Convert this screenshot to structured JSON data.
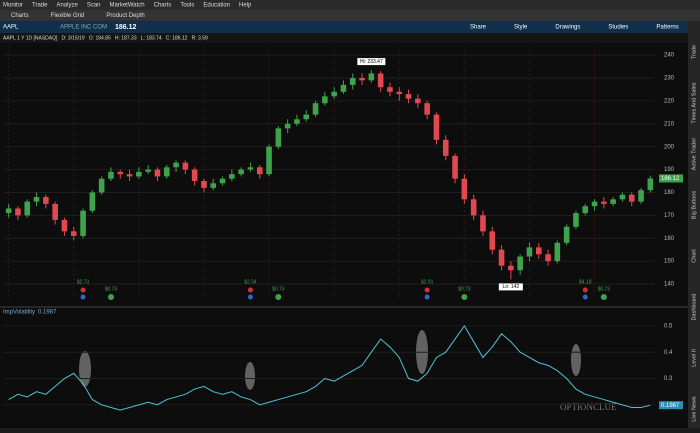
{
  "menu": [
    "Monitor",
    "Trade",
    "Analyze",
    "Scan",
    "MarketWatch",
    "Charts",
    "Tools",
    "Education",
    "Help"
  ],
  "tabs": [
    "Charts",
    "Flexible Grid",
    "Product Depth"
  ],
  "toolbar": {
    "symbol": "AAPL",
    "company": "APPLE INC COM",
    "last": "186.12",
    "buttons": [
      "Share",
      "Style",
      "Drawings",
      "Studies",
      "Patterns"
    ]
  },
  "info": "AAPL 1 Y 1D [NASDAQ]   D: 3/15/19   O: 184.85   H: 187.33   L: 183.74   C: 186.12   R: 3.59",
  "sidebar": [
    "Trade",
    "Times And Sales",
    "Active Trader",
    "Big Buttons",
    "Chart",
    "Dashboard",
    "Level II",
    "Live News"
  ],
  "watermark": "OPTIONCLUE",
  "chart_data": [
    {
      "type": "candlestick",
      "up_color": "#3fa34d",
      "down_color": "#e0494f",
      "open": [
        171,
        173,
        170,
        176,
        178,
        175,
        168,
        163,
        161,
        172,
        180,
        186,
        189,
        188,
        187,
        189,
        190,
        187,
        191,
        193,
        190,
        185,
        182,
        184,
        186,
        188,
        190,
        191,
        188,
        200,
        208,
        210,
        212,
        214,
        219,
        222,
        224,
        227,
        230,
        229,
        232,
        226,
        224,
        223,
        221,
        219,
        214,
        203,
        196,
        186,
        177,
        170,
        163,
        155,
        148,
        146,
        152,
        156,
        153,
        150,
        158,
        165,
        171,
        174,
        176,
        175,
        177,
        179,
        176,
        181
      ],
      "high": [
        175,
        174,
        177,
        180,
        179,
        176,
        169,
        165,
        173,
        181,
        187,
        191,
        190,
        190,
        191,
        192,
        191,
        192,
        194,
        194,
        191,
        186,
        186,
        187,
        190,
        191,
        193,
        192,
        201,
        209,
        212,
        214,
        216,
        220,
        224,
        226,
        229,
        232,
        232,
        233.47,
        233,
        228,
        226,
        225,
        223,
        220,
        215,
        205,
        197,
        188,
        179,
        172,
        165,
        157,
        150,
        153,
        158,
        158,
        155,
        159,
        166,
        172,
        175,
        177,
        178,
        178,
        180,
        180,
        182,
        187.33
      ],
      "low": [
        169,
        168,
        169,
        174,
        173,
        166,
        161,
        159,
        160,
        171,
        179,
        185,
        186,
        185,
        186,
        188,
        185,
        186,
        189,
        188,
        183,
        180,
        181,
        183,
        185,
        187,
        189,
        186,
        187,
        199,
        206,
        209,
        211,
        213,
        218,
        221,
        223,
        225,
        227,
        228,
        224,
        222,
        220,
        219,
        217,
        212,
        201,
        194,
        184,
        175,
        168,
        161,
        153,
        146,
        142,
        144,
        150,
        151,
        148,
        149,
        157,
        164,
        170,
        172,
        173,
        174,
        176,
        174,
        175,
        180
      ],
      "close": [
        173,
        170,
        176,
        178,
        175,
        168,
        163,
        161,
        172,
        180,
        186,
        189,
        188,
        187,
        189,
        190,
        187,
        191,
        193,
        190,
        185,
        182,
        184,
        186,
        188,
        190,
        191,
        188,
        200,
        208,
        210,
        212,
        214,
        219,
        222,
        224,
        227,
        230,
        229,
        232,
        226,
        224,
        223,
        221,
        219,
        214,
        203,
        196,
        186,
        177,
        170,
        163,
        155,
        148,
        146,
        152,
        156,
        153,
        150,
        158,
        165,
        171,
        174,
        176,
        175,
        177,
        179,
        176,
        181,
        186.12
      ],
      "ylim": [
        133,
        244
      ],
      "yticks": [
        140,
        150,
        160,
        170,
        180,
        190,
        200,
        210,
        220,
        230,
        240
      ],
      "annotations": {
        "high": "Hi: 233.47",
        "low": "Lo: 142"
      },
      "earnings": [
        null,
        null,
        null,
        null,
        null,
        null,
        null,
        null,
        "$2.73",
        null,
        null,
        null,
        null,
        null,
        null,
        null,
        null,
        null,
        null,
        null,
        null,
        null,
        null,
        null,
        null,
        null,
        "$2.34",
        null,
        null,
        null,
        null,
        null,
        null,
        null,
        null,
        null,
        null,
        null,
        null,
        null,
        null,
        null,
        null,
        null,
        null,
        "$2.91",
        null,
        null,
        null,
        null,
        null,
        null,
        null,
        null,
        null,
        null,
        null,
        null,
        null,
        null,
        null,
        null,
        "$4.18",
        null,
        null,
        null,
        null,
        null,
        null,
        null
      ],
      "dividends": [
        null,
        null,
        null,
        null,
        null,
        null,
        null,
        null,
        null,
        null,
        null,
        "$0.73",
        null,
        null,
        null,
        null,
        null,
        null,
        null,
        null,
        null,
        null,
        null,
        null,
        null,
        null,
        null,
        null,
        null,
        "$0.73",
        null,
        null,
        null,
        null,
        null,
        null,
        null,
        null,
        null,
        null,
        null,
        null,
        null,
        null,
        null,
        null,
        null,
        null,
        null,
        "$0.73",
        null,
        null,
        null,
        null,
        null,
        null,
        null,
        null,
        null,
        null,
        null,
        null,
        null,
        null,
        "$0.73",
        null,
        null,
        null,
        null,
        null
      ]
    },
    {
      "type": "line",
      "title": "ImpVolatility",
      "last_label": "0.1987",
      "color": "#4fc3d9",
      "values": [
        0.22,
        0.24,
        0.23,
        0.25,
        0.24,
        0.27,
        0.3,
        0.32,
        0.28,
        0.22,
        0.2,
        0.19,
        0.18,
        0.19,
        0.2,
        0.21,
        0.2,
        0.22,
        0.23,
        0.24,
        0.26,
        0.27,
        0.25,
        0.24,
        0.25,
        0.23,
        0.22,
        0.2,
        0.21,
        0.22,
        0.23,
        0.24,
        0.25,
        0.27,
        0.3,
        0.29,
        0.31,
        0.33,
        0.35,
        0.4,
        0.45,
        0.42,
        0.38,
        0.3,
        0.29,
        0.32,
        0.38,
        0.4,
        0.45,
        0.5,
        0.44,
        0.38,
        0.42,
        0.47,
        0.44,
        0.4,
        0.38,
        0.36,
        0.35,
        0.33,
        0.3,
        0.26,
        0.24,
        0.23,
        0.22,
        0.21,
        0.2,
        0.19,
        0.19,
        0.1987
      ],
      "ylim": [
        0.15,
        0.53
      ],
      "yticks": [
        0.2,
        0.3,
        0.4,
        0.5
      ]
    }
  ]
}
